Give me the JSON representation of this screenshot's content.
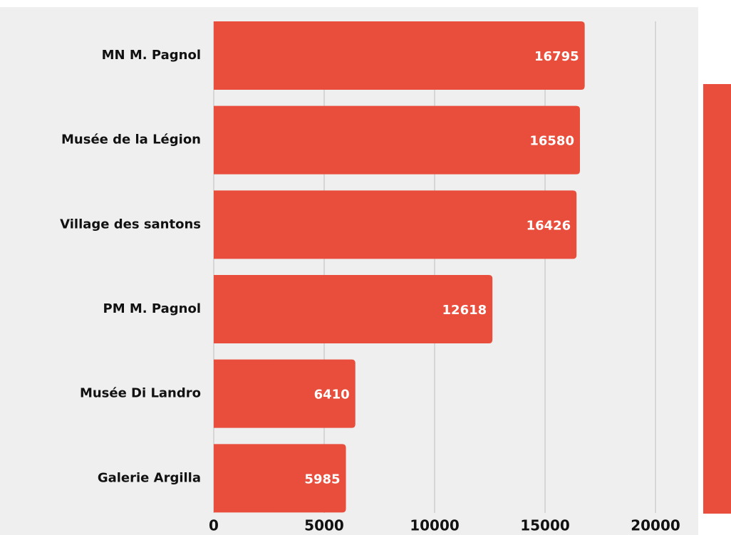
{
  "chart_data": {
    "type": "bar",
    "orientation": "horizontal",
    "categories": [
      "MN M. Pagnol",
      "Musée de la Légion",
      "Village des santons",
      "PM M. Pagnol",
      "Musée Di Landro",
      "Galerie Argilla"
    ],
    "values": [
      16795,
      16580,
      16426,
      12618,
      6410,
      5985
    ],
    "color": "#e84e3b",
    "xlim": [
      0,
      20000
    ],
    "xticks": [
      0,
      5000,
      10000,
      15000,
      20000
    ],
    "grid": true
  }
}
